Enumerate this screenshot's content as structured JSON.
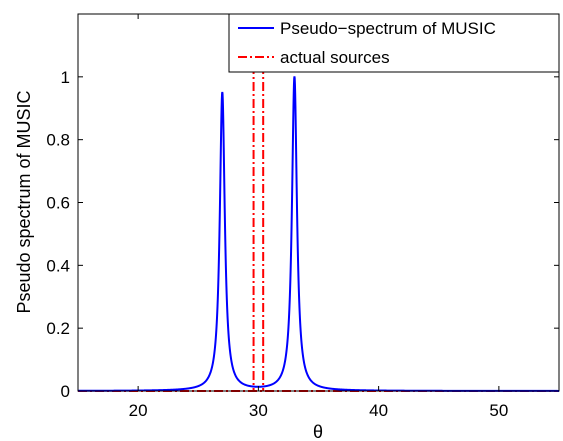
{
  "chart_data": {
    "type": "line",
    "title": "",
    "xlabel": "θ",
    "ylabel": "Pseudo spectrum of MUSIC",
    "xlim": [
      15,
      55
    ],
    "ylim": [
      0,
      1.2
    ],
    "xticks": [
      20,
      30,
      40,
      50
    ],
    "yticks": [
      0,
      0.2,
      0.4,
      0.6,
      0.8,
      1
    ],
    "xtick_labels": [
      "20",
      "30",
      "40",
      "50"
    ],
    "ytick_labels": [
      "0",
      "0.2",
      "0.4",
      "0.6",
      "0.8",
      "1"
    ],
    "grid": false,
    "legend_position": "top-right",
    "series": [
      {
        "name": "Pseudo−spectrum of MUSIC",
        "color": "#0000ff",
        "style": "solid",
        "peaks": [
          {
            "x": 27.0,
            "height": 0.95
          },
          {
            "x": 33.0,
            "height": 1.0
          }
        ],
        "peak_halfwidth": 0.25
      },
      {
        "name": "actual sources",
        "color": "#ff0000",
        "style": "dash-dot",
        "vlines": [
          29.6,
          30.4
        ]
      }
    ]
  }
}
